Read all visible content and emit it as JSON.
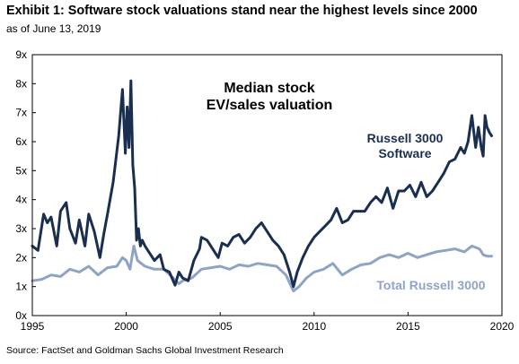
{
  "header": {
    "title": "Exhibit 1: Software stock valuations stand near the highest levels since 2000",
    "subtitle": "as of June 13, 2019"
  },
  "footer": {
    "source": "Source: FactSet and Goldman Sachs Global Investment Research"
  },
  "chart_data": {
    "type": "line",
    "title": "Median stock EV/sales valuation",
    "title_lines": [
      "Median stock",
      "EV/sales valuation"
    ],
    "xlabel": "",
    "ylabel": "",
    "xlim": [
      1995,
      2020
    ],
    "ylim": [
      0,
      9
    ],
    "grid": false,
    "legend": "inline labels",
    "x_ticks": [
      "1995",
      "2000",
      "2005",
      "2010",
      "2015",
      "2020"
    ],
    "y_ticks": [
      "0x",
      "1x",
      "2x",
      "3x",
      "4x",
      "5x",
      "6x",
      "7x",
      "8x",
      "9x"
    ],
    "series": [
      {
        "name": "Russell 3000 Software",
        "label_lines": [
          "Russell 3000",
          "Software"
        ],
        "color": "#1a2f50",
        "x": [
          1995.0,
          1995.3,
          1995.6,
          1995.8,
          1996.0,
          1996.3,
          1996.5,
          1996.8,
          1997.0,
          1997.3,
          1997.5,
          1997.8,
          1998.0,
          1998.3,
          1998.6,
          1998.8,
          1999.0,
          1999.3,
          1999.6,
          1999.8,
          1999.95,
          2000.05,
          2000.15,
          2000.25,
          2000.35,
          2000.45,
          2000.55,
          2000.65,
          2000.75,
          2000.85,
          2001.0,
          2001.2,
          2001.5,
          2001.8,
          2002.0,
          2002.3,
          2002.6,
          2002.8,
          2003.0,
          2003.3,
          2003.6,
          2003.9,
          2004.0,
          2004.3,
          2004.6,
          2004.9,
          2005.1,
          2005.4,
          2005.7,
          2006.0,
          2006.3,
          2006.6,
          2006.9,
          2007.2,
          2007.5,
          2007.8,
          2008.1,
          2008.4,
          2008.7,
          2008.9,
          2009.1,
          2009.4,
          2009.7,
          2010.0,
          2010.3,
          2010.6,
          2010.9,
          2011.2,
          2011.5,
          2011.8,
          2012.1,
          2012.4,
          2012.7,
          2013.0,
          2013.3,
          2013.6,
          2013.9,
          2014.2,
          2014.5,
          2014.8,
          2015.1,
          2015.4,
          2015.7,
          2016.0,
          2016.3,
          2016.6,
          2016.9,
          2017.2,
          2017.5,
          2017.8,
          2018.0,
          2018.2,
          2018.4,
          2018.6,
          2018.75,
          2018.9,
          2019.0,
          2019.1,
          2019.2,
          2019.35,
          2019.45
        ],
        "values": [
          2.4,
          2.25,
          3.5,
          3.2,
          3.4,
          2.4,
          3.6,
          3.9,
          3.0,
          2.5,
          3.3,
          2.4,
          3.5,
          2.9,
          2.0,
          2.8,
          3.5,
          4.6,
          6.2,
          7.8,
          5.6,
          7.2,
          5.8,
          8.1,
          5.2,
          4.4,
          2.6,
          3.0,
          2.4,
          2.6,
          2.4,
          2.2,
          1.9,
          2.1,
          1.6,
          1.5,
          1.05,
          1.5,
          1.3,
          1.2,
          1.9,
          2.3,
          2.7,
          2.6,
          2.3,
          2.0,
          2.5,
          2.4,
          2.7,
          2.8,
          2.5,
          2.7,
          3.0,
          3.2,
          2.9,
          2.6,
          2.4,
          2.1,
          1.5,
          1.0,
          1.5,
          2.0,
          2.4,
          2.7,
          2.9,
          3.1,
          3.3,
          3.7,
          3.2,
          3.3,
          3.6,
          3.6,
          3.6,
          3.9,
          4.1,
          3.9,
          4.4,
          3.7,
          4.3,
          4.3,
          4.5,
          4.1,
          4.6,
          4.1,
          4.3,
          4.6,
          4.9,
          5.3,
          5.4,
          5.8,
          5.6,
          6.0,
          6.9,
          5.8,
          6.5,
          5.8,
          5.5,
          6.9,
          6.5,
          6.3,
          6.2
        ]
      },
      {
        "name": "Total Russell 3000",
        "label_lines": [
          "Total Russell 3000"
        ],
        "color": "#8fa3c4",
        "x": [
          1995.0,
          1995.5,
          1996.0,
          1996.5,
          1997.0,
          1997.5,
          1998.0,
          1998.5,
          1999.0,
          1999.5,
          1999.8,
          2000.0,
          2000.2,
          2000.4,
          2000.6,
          2000.8,
          2001.0,
          2001.5,
          2002.0,
          2002.5,
          2002.8,
          2003.0,
          2003.5,
          2004.0,
          2004.5,
          2005.0,
          2005.5,
          2006.0,
          2006.5,
          2007.0,
          2007.5,
          2008.0,
          2008.5,
          2008.9,
          2009.2,
          2009.6,
          2010.0,
          2010.5,
          2011.0,
          2011.5,
          2012.0,
          2012.5,
          2013.0,
          2013.5,
          2014.0,
          2014.5,
          2015.0,
          2015.5,
          2016.0,
          2016.5,
          2017.0,
          2017.5,
          2018.0,
          2018.4,
          2018.8,
          2019.0,
          2019.2,
          2019.45
        ],
        "values": [
          1.2,
          1.25,
          1.4,
          1.35,
          1.6,
          1.5,
          1.7,
          1.4,
          1.65,
          1.7,
          2.0,
          1.9,
          1.6,
          2.4,
          1.9,
          1.8,
          1.7,
          1.6,
          1.6,
          1.3,
          1.1,
          1.2,
          1.3,
          1.6,
          1.65,
          1.7,
          1.6,
          1.75,
          1.7,
          1.8,
          1.75,
          1.7,
          1.4,
          0.85,
          1.0,
          1.3,
          1.5,
          1.6,
          1.8,
          1.4,
          1.6,
          1.75,
          1.8,
          2.0,
          2.1,
          2.0,
          2.15,
          2.0,
          2.1,
          2.2,
          2.25,
          2.3,
          2.2,
          2.4,
          2.3,
          2.1,
          2.05,
          2.05
        ]
      }
    ]
  }
}
